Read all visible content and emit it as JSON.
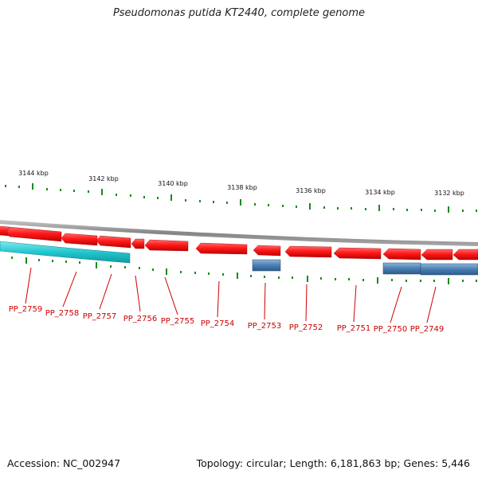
{
  "title": "Pseudomonas putida KT2440, complete genome",
  "footer": {
    "accession": "Accession: NC_002947",
    "topology": "Topology: circular; Length: 6,181,863 bp; Genes: 5,446"
  },
  "colors": {
    "backbone": "#8a8a8a",
    "gene_forward_strand": "#ff1010",
    "feature_cyan": "#1fc8cf",
    "feature_blue": "#4a7fb2",
    "tick": "#1a8a1a",
    "label": "#cc0000"
  },
  "kbp_labels": [
    "3144 kbp",
    "3142 kbp",
    "3140 kbp",
    "3138 kbp",
    "3136 kbp",
    "3134 kbp",
    "3132 kbp"
  ],
  "genes": [
    "PP_2759",
    "PP_2758",
    "PP_2757",
    "PP_2756",
    "PP_2755",
    "PP_2754",
    "PP_2753",
    "PP_2752",
    "PP_2751",
    "PP_2750",
    "PP_2749"
  ]
}
